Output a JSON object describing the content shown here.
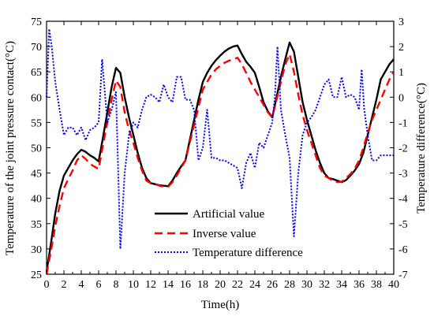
{
  "chart_data": {
    "type": "line",
    "xlabel": "Time(h)",
    "ylabel_left": "Temperature of the joint pressure contact(°C)",
    "ylabel_right": "Temperature difference(°C)",
    "xlim": [
      0,
      40
    ],
    "ylim_left": [
      25,
      75
    ],
    "ylim_right": [
      -7,
      3
    ],
    "x_ticks": [
      0,
      2,
      4,
      6,
      8,
      10,
      12,
      14,
      16,
      18,
      20,
      22,
      24,
      26,
      28,
      30,
      32,
      34,
      36,
      38,
      40
    ],
    "y_left_ticks": [
      25,
      30,
      35,
      40,
      45,
      50,
      55,
      60,
      65,
      70,
      75
    ],
    "y_right_ticks": [
      -7,
      -6,
      -5,
      -4,
      -3,
      -2,
      -1,
      0,
      1,
      2,
      3
    ],
    "grid": false,
    "legend_position": "bottom-center",
    "series": [
      {
        "name": "Artificial value",
        "axis": "left",
        "color": "#000000",
        "dash": "solid",
        "x": [
          0,
          0.5,
          1,
          1.5,
          2,
          2.5,
          3,
          3.5,
          4,
          4.5,
          5,
          5.5,
          6,
          6.5,
          7,
          7.5,
          8,
          8.5,
          9,
          9.5,
          10,
          10.5,
          11,
          11.5,
          12,
          12.5,
          13,
          13.5,
          14,
          14.5,
          15,
          15.5,
          16,
          16.5,
          17,
          17.5,
          18,
          18.5,
          19,
          19.5,
          20,
          20.5,
          21,
          21.5,
          22,
          22.5,
          23,
          23.5,
          24,
          24.5,
          25,
          25.5,
          26,
          26.5,
          27,
          27.5,
          28,
          28.5,
          29,
          29.5,
          30,
          30.5,
          31,
          31.5,
          32,
          32.5,
          33,
          33.5,
          34,
          34.5,
          35,
          35.5,
          36,
          36.5,
          37,
          37.5,
          38,
          38.5,
          39,
          39.5,
          40
        ],
        "values": [
          25.5,
          31,
          37,
          41.5,
          44.5,
          46,
          47.5,
          48.7,
          49.6,
          49.2,
          48.5,
          48,
          47.3,
          52,
          57,
          62,
          65.8,
          64.8,
          60,
          56,
          52.5,
          49,
          46,
          44,
          43,
          42.8,
          42.6,
          42.5,
          42.4,
          43.5,
          45,
          46.3,
          47.5,
          51.5,
          55.5,
          59.5,
          63,
          64.8,
          66.2,
          67.3,
          68.2,
          69,
          69.6,
          70,
          70.2,
          68.5,
          67,
          66,
          64.8,
          62,
          59,
          57.2,
          56,
          60,
          64,
          67.5,
          70.8,
          69,
          64,
          59,
          55.5,
          52.5,
          49.5,
          47,
          45,
          44,
          43.8,
          43.5,
          43.2,
          43.6,
          44.5,
          45.5,
          46.8,
          49,
          52.5,
          56,
          59.5,
          63.5,
          65,
          66.5,
          67.5
        ]
      },
      {
        "name": "Inverse value",
        "axis": "left",
        "color": "#ff0000",
        "dash": "dashed",
        "x": [
          0,
          0.5,
          1,
          1.5,
          2,
          2.5,
          3,
          3.5,
          4,
          4.5,
          5,
          5.5,
          6,
          6.5,
          7,
          7.5,
          8,
          8.5,
          9,
          9.5,
          10,
          10.5,
          11,
          11.5,
          12,
          12.5,
          13,
          13.5,
          14,
          14.5,
          15,
          15.5,
          16,
          16.5,
          17,
          17.5,
          18,
          18.5,
          19,
          19.5,
          20,
          20.5,
          21,
          21.5,
          22,
          22.5,
          23,
          23.5,
          24,
          24.5,
          25,
          25.5,
          26,
          26.5,
          27,
          27.5,
          28,
          28.5,
          29,
          29.5,
          30,
          30.5,
          31,
          31.5,
          32,
          32.5,
          33,
          33.5,
          34,
          34.5,
          35,
          35.5,
          36,
          36.5,
          37,
          37.5,
          38,
          38.5,
          39,
          39.5,
          40
        ],
        "values": [
          25,
          29.5,
          34.5,
          38.5,
          42,
          43.8,
          45.5,
          47.5,
          48.5,
          47.8,
          46.8,
          46.3,
          45.8,
          50.5,
          55,
          59.5,
          63.3,
          62,
          57,
          53.5,
          51,
          48,
          45.5,
          43.5,
          43,
          42.8,
          42.5,
          42.3,
          42.3,
          43.2,
          44.5,
          46,
          47.5,
          51,
          54.5,
          58,
          61.5,
          63,
          64.5,
          65.5,
          66.2,
          66.8,
          67.2,
          67.5,
          67.8,
          66.5,
          64.8,
          63,
          61.5,
          60,
          58.5,
          57,
          56,
          59.5,
          63,
          66.5,
          68.5,
          65,
          60.5,
          56.5,
          53.5,
          51,
          48.5,
          46,
          44.5,
          44,
          43.5,
          43.2,
          43.3,
          44,
          44.8,
          45.8,
          47.5,
          50,
          53,
          55.5,
          57.5,
          59.5,
          61.5,
          63.5,
          65
        ]
      },
      {
        "name": "Temperature difference",
        "axis": "right",
        "color": "#0000ff",
        "dash": "dotted",
        "x": [
          0,
          0.3,
          0.6,
          1,
          1.5,
          2,
          2.5,
          3,
          3.5,
          4,
          4.5,
          5,
          5.5,
          6,
          6.4,
          7,
          7.5,
          8,
          8.5,
          9,
          9.5,
          10,
          10.5,
          11,
          11.5,
          12,
          12.5,
          13,
          13.5,
          14,
          14.5,
          15,
          15.5,
          16,
          16.5,
          17,
          17.5,
          18,
          18.5,
          19,
          19.5,
          20,
          20.5,
          21,
          21.5,
          22,
          22.5,
          23,
          23.5,
          24,
          24.5,
          25,
          25.5,
          26,
          26.3,
          26.6,
          27,
          27.5,
          28,
          28.5,
          29,
          29.5,
          30,
          30.5,
          31,
          31.5,
          32,
          32.5,
          33,
          33.5,
          34,
          34.5,
          35,
          35.5,
          36,
          36.3,
          36.6,
          37,
          37.5,
          38,
          38.5,
          39,
          39.5,
          40
        ],
        "values": [
          0,
          2.7,
          2.0,
          0.6,
          -0.5,
          -1.5,
          -1.2,
          -1.2,
          -1.5,
          -1.2,
          -1.7,
          -1.3,
          -1.2,
          -1.0,
          1.5,
          -1.0,
          -0.5,
          0.2,
          -6.0,
          -3.0,
          -1.5,
          -1.0,
          -1.2,
          -0.5,
          0,
          0.1,
          0,
          -0.2,
          0.5,
          0,
          -0.2,
          0.8,
          0.8,
          -0.1,
          -0.1,
          -0.5,
          -2.5,
          -2.0,
          -0.5,
          -2.4,
          -2.4,
          -2.5,
          -2.5,
          -2.6,
          -2.7,
          -2.8,
          -3.6,
          -2.6,
          -2.2,
          -2.8,
          -1.8,
          -2.0,
          -1.5,
          -1.0,
          0,
          2.0,
          -0.5,
          -1.5,
          -2.4,
          -5.5,
          -3.0,
          -1.5,
          -1.0,
          -0.8,
          -0.5,
          0,
          0.5,
          0.7,
          0,
          0,
          0.8,
          0,
          0.1,
          0,
          -0.5,
          1.1,
          -0.5,
          -1.5,
          -2.5,
          -2.5,
          -2.3,
          -2.3,
          -2.3,
          -2.3
        ]
      }
    ]
  }
}
